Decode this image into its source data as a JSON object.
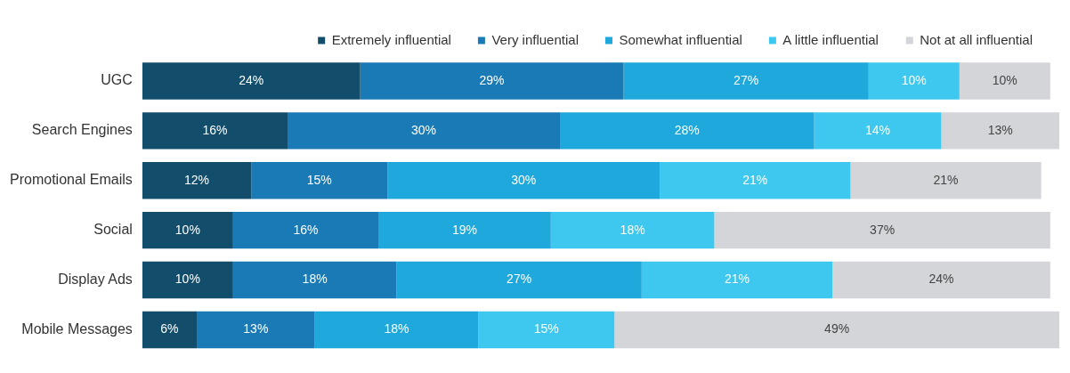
{
  "chart_data": {
    "type": "bar",
    "orientation": "horizontal",
    "stacked": true,
    "legend": "top",
    "grid": false,
    "tick_labels": "y",
    "categories": [
      "UGC",
      "Search Engines",
      "Promotional Emails",
      "Social",
      "Display Ads",
      "Mobile Messages"
    ],
    "series": [
      {
        "name": "Extremely influential",
        "color": "#124e6b",
        "values": [
          24,
          16,
          12,
          10,
          10,
          6
        ],
        "value_labels": [
          "24%",
          "16%",
          "12%",
          "10%",
          "10%",
          "6%"
        ]
      },
      {
        "name": "Very influential",
        "color": "#1a7ab5",
        "values": [
          29,
          30,
          15,
          16,
          18,
          13
        ],
        "value_labels": [
          "29%",
          "30%",
          "15%",
          "16%",
          "18%",
          "13%"
        ]
      },
      {
        "name": "Somewhat influential",
        "color": "#1ea8dc",
        "values": [
          27,
          28,
          30,
          19,
          27,
          18
        ],
        "value_labels": [
          "27%",
          "28%",
          "30%",
          "19%",
          "27%",
          "18%"
        ]
      },
      {
        "name": "A little influential",
        "color": "#3ec8ef",
        "values": [
          10,
          14,
          21,
          18,
          21,
          15
        ],
        "value_labels": [
          "10%",
          "14%",
          "21%",
          "18%",
          "21%",
          "15%"
        ]
      },
      {
        "name": "Not at all influential",
        "color": "#d3d5d8",
        "values": [
          10,
          13,
          21,
          37,
          24,
          49
        ],
        "value_labels": [
          "10%",
          "13%",
          "21%",
          "37%",
          "24%",
          "49%"
        ]
      }
    ]
  }
}
